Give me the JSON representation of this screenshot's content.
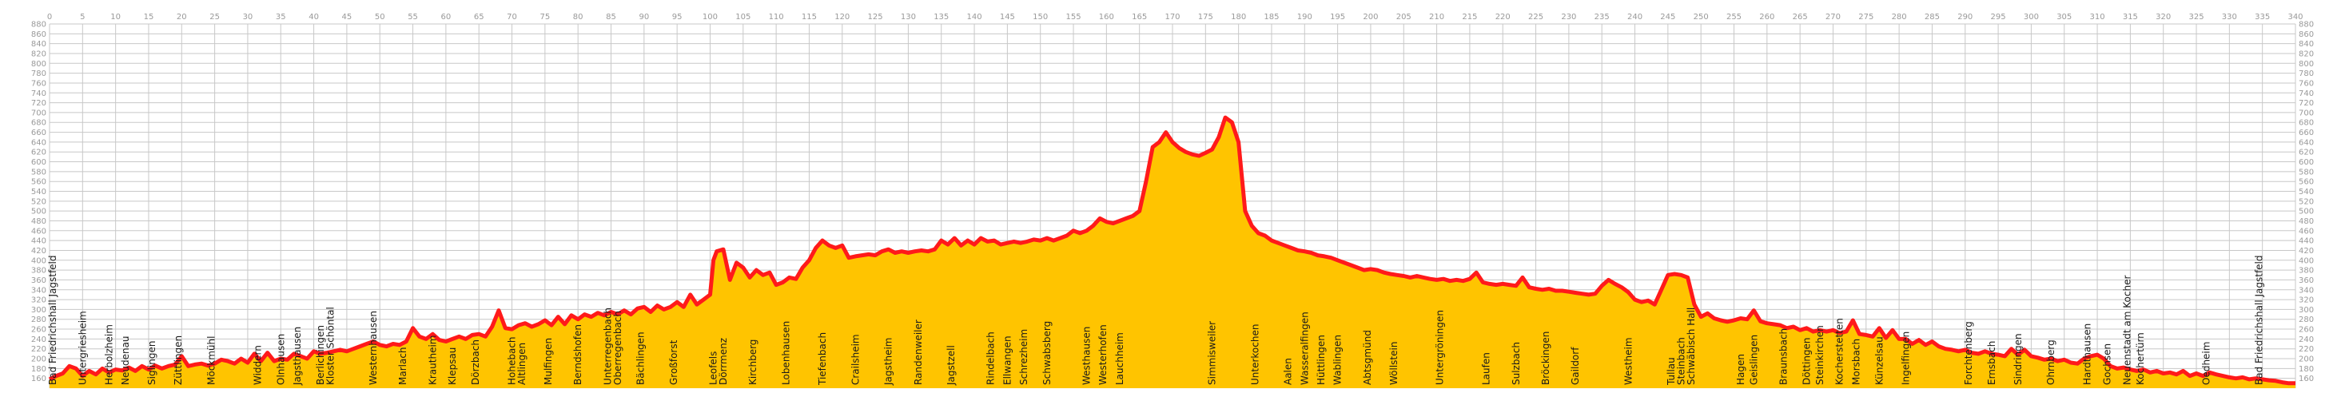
{
  "chart_data": {
    "type": "area",
    "title": "",
    "xlabel": "",
    "ylabel": "",
    "xlim": [
      0,
      340
    ],
    "ylim": [
      140,
      880
    ],
    "x_tick_step": 5,
    "y_tick_step": 20,
    "grid": true,
    "fill_color": "#ffc400",
    "line_color": "#ff1a1a",
    "profile": [
      [
        0,
        158
      ],
      [
        1,
        165
      ],
      [
        2,
        170
      ],
      [
        3,
        185
      ],
      [
        4,
        180
      ],
      [
        5,
        165
      ],
      [
        6,
        175
      ],
      [
        7,
        168
      ],
      [
        8,
        180
      ],
      [
        9,
        172
      ],
      [
        10,
        178
      ],
      [
        11,
        176
      ],
      [
        12,
        182
      ],
      [
        13,
        175
      ],
      [
        14,
        185
      ],
      [
        15,
        178
      ],
      [
        16,
        186
      ],
      [
        17,
        180
      ],
      [
        18,
        185
      ],
      [
        19,
        188
      ],
      [
        20,
        205
      ],
      [
        21,
        185
      ],
      [
        22,
        188
      ],
      [
        23,
        190
      ],
      [
        24,
        186
      ],
      [
        25,
        190
      ],
      [
        26,
        198
      ],
      [
        27,
        195
      ],
      [
        28,
        190
      ],
      [
        29,
        200
      ],
      [
        30,
        192
      ],
      [
        31,
        210
      ],
      [
        32,
        195
      ],
      [
        33,
        212
      ],
      [
        34,
        195
      ],
      [
        35,
        200
      ],
      [
        36,
        198
      ],
      [
        37,
        210
      ],
      [
        38,
        205
      ],
      [
        39,
        200
      ],
      [
        40,
        215
      ],
      [
        41,
        210
      ],
      [
        42,
        212
      ],
      [
        43,
        215
      ],
      [
        44,
        218
      ],
      [
        45,
        215
      ],
      [
        46,
        220
      ],
      [
        47,
        225
      ],
      [
        48,
        230
      ],
      [
        49,
        235
      ],
      [
        50,
        228
      ],
      [
        51,
        225
      ],
      [
        52,
        230
      ],
      [
        53,
        228
      ],
      [
        54,
        235
      ],
      [
        55,
        262
      ],
      [
        56,
        245
      ],
      [
        57,
        240
      ],
      [
        58,
        250
      ],
      [
        59,
        238
      ],
      [
        60,
        235
      ],
      [
        61,
        240
      ],
      [
        62,
        245
      ],
      [
        63,
        240
      ],
      [
        64,
        248
      ],
      [
        65,
        250
      ],
      [
        66,
        245
      ],
      [
        67,
        265
      ],
      [
        68,
        298
      ],
      [
        69,
        262
      ],
      [
        70,
        260
      ],
      [
        71,
        268
      ],
      [
        72,
        272
      ],
      [
        73,
        265
      ],
      [
        74,
        270
      ],
      [
        75,
        278
      ],
      [
        76,
        268
      ],
      [
        77,
        285
      ],
      [
        78,
        270
      ],
      [
        79,
        288
      ],
      [
        80,
        280
      ],
      [
        81,
        290
      ],
      [
        82,
        285
      ],
      [
        83,
        293
      ],
      [
        84,
        288
      ],
      [
        85,
        295
      ],
      [
        86,
        290
      ],
      [
        87,
        298
      ],
      [
        88,
        290
      ],
      [
        89,
        302
      ],
      [
        90,
        305
      ],
      [
        91,
        295
      ],
      [
        92,
        308
      ],
      [
        93,
        300
      ],
      [
        94,
        305
      ],
      [
        95,
        315
      ],
      [
        96,
        305
      ],
      [
        97,
        330
      ],
      [
        98,
        310
      ],
      [
        99,
        320
      ],
      [
        100,
        330
      ],
      [
        100.5,
        400
      ],
      [
        101,
        418
      ],
      [
        102,
        422
      ],
      [
        103,
        360
      ],
      [
        104,
        395
      ],
      [
        105,
        385
      ],
      [
        106,
        365
      ],
      [
        107,
        380
      ],
      [
        108,
        370
      ],
      [
        109,
        375
      ],
      [
        110,
        350
      ],
      [
        111,
        355
      ],
      [
        112,
        365
      ],
      [
        113,
        362
      ],
      [
        114,
        385
      ],
      [
        115,
        400
      ],
      [
        116,
        425
      ],
      [
        117,
        440
      ],
      [
        118,
        430
      ],
      [
        119,
        425
      ],
      [
        120,
        430
      ],
      [
        121,
        405
      ],
      [
        122,
        408
      ],
      [
        123,
        410
      ],
      [
        124,
        412
      ],
      [
        125,
        410
      ],
      [
        126,
        418
      ],
      [
        127,
        422
      ],
      [
        128,
        415
      ],
      [
        129,
        418
      ],
      [
        130,
        415
      ],
      [
        131,
        418
      ],
      [
        132,
        420
      ],
      [
        133,
        418
      ],
      [
        134,
        422
      ],
      [
        135,
        440
      ],
      [
        136,
        432
      ],
      [
        137,
        445
      ],
      [
        138,
        430
      ],
      [
        139,
        440
      ],
      [
        140,
        432
      ],
      [
        141,
        445
      ],
      [
        142,
        438
      ],
      [
        143,
        440
      ],
      [
        144,
        432
      ],
      [
        145,
        435
      ],
      [
        146,
        438
      ],
      [
        147,
        435
      ],
      [
        148,
        438
      ],
      [
        149,
        442
      ],
      [
        150,
        440
      ],
      [
        151,
        445
      ],
      [
        152,
        440
      ],
      [
        153,
        445
      ],
      [
        154,
        450
      ],
      [
        155,
        460
      ],
      [
        156,
        455
      ],
      [
        157,
        460
      ],
      [
        158,
        470
      ],
      [
        159,
        485
      ],
      [
        160,
        478
      ],
      [
        161,
        475
      ],
      [
        162,
        480
      ],
      [
        163,
        485
      ],
      [
        164,
        490
      ],
      [
        165,
        500
      ],
      [
        166,
        560
      ],
      [
        167,
        630
      ],
      [
        168,
        640
      ],
      [
        169,
        660
      ],
      [
        170,
        640
      ],
      [
        171,
        628
      ],
      [
        172,
        620
      ],
      [
        173,
        615
      ],
      [
        174,
        612
      ],
      [
        175,
        618
      ],
      [
        176,
        625
      ],
      [
        177,
        650
      ],
      [
        178,
        690
      ],
      [
        179,
        680
      ],
      [
        180,
        640
      ],
      [
        181,
        500
      ],
      [
        182,
        470
      ],
      [
        183,
        455
      ],
      [
        184,
        450
      ],
      [
        185,
        440
      ],
      [
        186,
        435
      ],
      [
        187,
        430
      ],
      [
        188,
        425
      ],
      [
        189,
        420
      ],
      [
        190,
        418
      ],
      [
        191,
        415
      ],
      [
        192,
        410
      ],
      [
        193,
        408
      ],
      [
        194,
        405
      ],
      [
        195,
        400
      ],
      [
        196,
        395
      ],
      [
        197,
        390
      ],
      [
        198,
        385
      ],
      [
        199,
        380
      ],
      [
        200,
        382
      ],
      [
        201,
        380
      ],
      [
        202,
        375
      ],
      [
        203,
        372
      ],
      [
        204,
        370
      ],
      [
        205,
        368
      ],
      [
        206,
        365
      ],
      [
        207,
        368
      ],
      [
        208,
        365
      ],
      [
        209,
        362
      ],
      [
        210,
        360
      ],
      [
        211,
        362
      ],
      [
        212,
        358
      ],
      [
        213,
        360
      ],
      [
        214,
        358
      ],
      [
        215,
        362
      ],
      [
        216,
        375
      ],
      [
        217,
        355
      ],
      [
        218,
        352
      ],
      [
        219,
        350
      ],
      [
        220,
        352
      ],
      [
        221,
        350
      ],
      [
        222,
        348
      ],
      [
        223,
        365
      ],
      [
        224,
        345
      ],
      [
        225,
        342
      ],
      [
        226,
        340
      ],
      [
        227,
        342
      ],
      [
        228,
        338
      ],
      [
        229,
        338
      ],
      [
        230,
        336
      ],
      [
        231,
        334
      ],
      [
        232,
        332
      ],
      [
        233,
        330
      ],
      [
        234,
        332
      ],
      [
        235,
        348
      ],
      [
        236,
        360
      ],
      [
        237,
        352
      ],
      [
        238,
        345
      ],
      [
        239,
        335
      ],
      [
        240,
        320
      ],
      [
        241,
        315
      ],
      [
        242,
        318
      ],
      [
        243,
        310
      ],
      [
        244,
        340
      ],
      [
        245,
        370
      ],
      [
        246,
        372
      ],
      [
        247,
        370
      ],
      [
        248,
        365
      ],
      [
        249,
        310
      ],
      [
        250,
        285
      ],
      [
        251,
        292
      ],
      [
        252,
        282
      ],
      [
        253,
        278
      ],
      [
        254,
        275
      ],
      [
        255,
        278
      ],
      [
        256,
        282
      ],
      [
        257,
        280
      ],
      [
        258,
        298
      ],
      [
        259,
        276
      ],
      [
        260,
        272
      ],
      [
        261,
        270
      ],
      [
        262,
        268
      ],
      [
        263,
        262
      ],
      [
        264,
        265
      ],
      [
        265,
        258
      ],
      [
        266,
        262
      ],
      [
        267,
        255
      ],
      [
        268,
        258
      ],
      [
        269,
        255
      ],
      [
        270,
        258
      ],
      [
        271,
        252
      ],
      [
        272,
        255
      ],
      [
        273,
        278
      ],
      [
        274,
        250
      ],
      [
        275,
        248
      ],
      [
        276,
        245
      ],
      [
        277,
        262
      ],
      [
        278,
        242
      ],
      [
        279,
        258
      ],
      [
        280,
        240
      ],
      [
        281,
        240
      ],
      [
        282,
        230
      ],
      [
        283,
        238
      ],
      [
        284,
        228
      ],
      [
        285,
        235
      ],
      [
        286,
        225
      ],
      [
        287,
        220
      ],
      [
        288,
        218
      ],
      [
        289,
        215
      ],
      [
        290,
        218
      ],
      [
        291,
        212
      ],
      [
        292,
        210
      ],
      [
        293,
        215
      ],
      [
        294,
        210
      ],
      [
        295,
        208
      ],
      [
        296,
        205
      ],
      [
        297,
        220
      ],
      [
        298,
        208
      ],
      [
        299,
        218
      ],
      [
        300,
        205
      ],
      [
        301,
        202
      ],
      [
        302,
        198
      ],
      [
        303,
        200
      ],
      [
        304,
        195
      ],
      [
        305,
        198
      ],
      [
        306,
        192
      ],
      [
        307,
        190
      ],
      [
        308,
        200
      ],
      [
        309,
        205
      ],
      [
        310,
        208
      ],
      [
        311,
        200
      ],
      [
        312,
        185
      ],
      [
        313,
        180
      ],
      [
        314,
        182
      ],
      [
        315,
        178
      ],
      [
        316,
        175
      ],
      [
        317,
        178
      ],
      [
        318,
        172
      ],
      [
        319,
        175
      ],
      [
        320,
        170
      ],
      [
        321,
        172
      ],
      [
        322,
        168
      ],
      [
        323,
        175
      ],
      [
        324,
        165
      ],
      [
        325,
        170
      ],
      [
        326,
        165
      ],
      [
        327,
        172
      ],
      [
        328,
        168
      ],
      [
        329,
        165
      ],
      [
        330,
        162
      ],
      [
        331,
        160
      ],
      [
        332,
        162
      ],
      [
        333,
        158
      ],
      [
        334,
        160
      ],
      [
        335,
        158
      ],
      [
        336,
        156
      ],
      [
        337,
        155
      ],
      [
        338,
        152
      ],
      [
        339,
        150
      ],
      [
        340,
        150
      ]
    ],
    "places": [
      {
        "name": "Bad Friedrichshall Jagstfeld",
        "km": 0.5
      },
      {
        "name": "Untergriesheim",
        "km": 5
      },
      {
        "name": "Herbolzheim",
        "km": 9
      },
      {
        "name": "Neudenau",
        "km": 11.5
      },
      {
        "name": "Siglingen",
        "km": 15.5
      },
      {
        "name": "Züttlingen",
        "km": 19.5
      },
      {
        "name": "Möckmühl",
        "km": 24.5
      },
      {
        "name": "Widdern",
        "km": 31.5
      },
      {
        "name": "Olnhausen",
        "km": 35
      },
      {
        "name": "Jagsthausen",
        "km": 37.5
      },
      {
        "name": "Berlichingen",
        "km": 41
      },
      {
        "name": "Kloster Schöntal",
        "km": 42.5
      },
      {
        "name": "Westernhausen",
        "km": 49
      },
      {
        "name": "Marlach",
        "km": 53.5
      },
      {
        "name": "Krautheim",
        "km": 58
      },
      {
        "name": "Klepsau",
        "km": 61
      },
      {
        "name": "Dörzbach",
        "km": 64.5
      },
      {
        "name": "Hohebach",
        "km": 70
      },
      {
        "name": "Altlingen",
        "km": 71.5
      },
      {
        "name": "Mulfingen",
        "km": 75.5
      },
      {
        "name": "Berndshofen",
        "km": 80
      },
      {
        "name": "Unterregenbach",
        "km": 84.5
      },
      {
        "name": "Oberregenbach",
        "km": 86
      },
      {
        "name": "Bächlingen",
        "km": 89.5
      },
      {
        "name": "Großforst",
        "km": 94.5
      },
      {
        "name": "Leofels",
        "km": 100.5
      },
      {
        "name": "Dörrmenz",
        "km": 102
      },
      {
        "name": "Kirchberg",
        "km": 106.5
      },
      {
        "name": "Lobenhausen",
        "km": 111.5
      },
      {
        "name": "Tiefenbach",
        "km": 117
      },
      {
        "name": "Crailsheim",
        "km": 122
      },
      {
        "name": "Jagstheim",
        "km": 127
      },
      {
        "name": "Randenweiler",
        "km": 131.5
      },
      {
        "name": "Jagstzell",
        "km": 136.5
      },
      {
        "name": "Rindelbach",
        "km": 142.5
      },
      {
        "name": "Ellwangen",
        "km": 145
      },
      {
        "name": "Schrezheim",
        "km": 147.5
      },
      {
        "name": "Schwabsberg",
        "km": 151
      },
      {
        "name": "Westhausen",
        "km": 157
      },
      {
        "name": "Westerhofen",
        "km": 159.5
      },
      {
        "name": "Lauchheim",
        "km": 162
      },
      {
        "name": "Simmisweiler",
        "km": 176
      },
      {
        "name": "Unterkochen",
        "km": 182.5
      },
      {
        "name": "Aalen",
        "km": 187.5
      },
      {
        "name": "Wasseralfingen",
        "km": 190
      },
      {
        "name": "Hüttlingen",
        "km": 192.5
      },
      {
        "name": "Wablingen",
        "km": 195
      },
      {
        "name": "Abtsgmünd",
        "km": 199.5
      },
      {
        "name": "Wöllstein",
        "km": 203.5
      },
      {
        "name": "Untergröningen",
        "km": 210.5
      },
      {
        "name": "Laufen",
        "km": 217.5
      },
      {
        "name": "Sulzbach",
        "km": 222
      },
      {
        "name": "Bröckingen",
        "km": 226.5
      },
      {
        "name": "Gaildorf",
        "km": 231
      },
      {
        "name": "Westheim",
        "km": 239
      },
      {
        "name": "Tullau",
        "km": 245.5
      },
      {
        "name": "Steinbach",
        "km": 247
      },
      {
        "name": "Schwäbisch Hall",
        "km": 248.5
      },
      {
        "name": "Hagen",
        "km": 256
      },
      {
        "name": "Geislingen",
        "km": 258
      },
      {
        "name": "Braunsbach",
        "km": 262.5
      },
      {
        "name": "Döttingen",
        "km": 266
      },
      {
        "name": "Steinkirchen",
        "km": 268
      },
      {
        "name": "Kocherstetten",
        "km": 271
      },
      {
        "name": "Morsbach",
        "km": 273.5
      },
      {
        "name": "Künzelsau",
        "km": 277
      },
      {
        "name": "Ingelfingen",
        "km": 281
      },
      {
        "name": "Forchtenberg",
        "km": 290.5
      },
      {
        "name": "Ernsbach",
        "km": 294
      },
      {
        "name": "Sindringen",
        "km": 298
      },
      {
        "name": "Ohrnberg",
        "km": 303
      },
      {
        "name": "Hardthausen",
        "km": 308.5
      },
      {
        "name": "Gochsen",
        "km": 311.5
      },
      {
        "name": "Neuenstadt am Kocher",
        "km": 314.5
      },
      {
        "name": "Kochertürn",
        "km": 316.5
      },
      {
        "name": "Oedheim",
        "km": 326.5
      },
      {
        "name": "Bad Friedrichshall Jagstfeld",
        "km": 334.5
      }
    ]
  }
}
